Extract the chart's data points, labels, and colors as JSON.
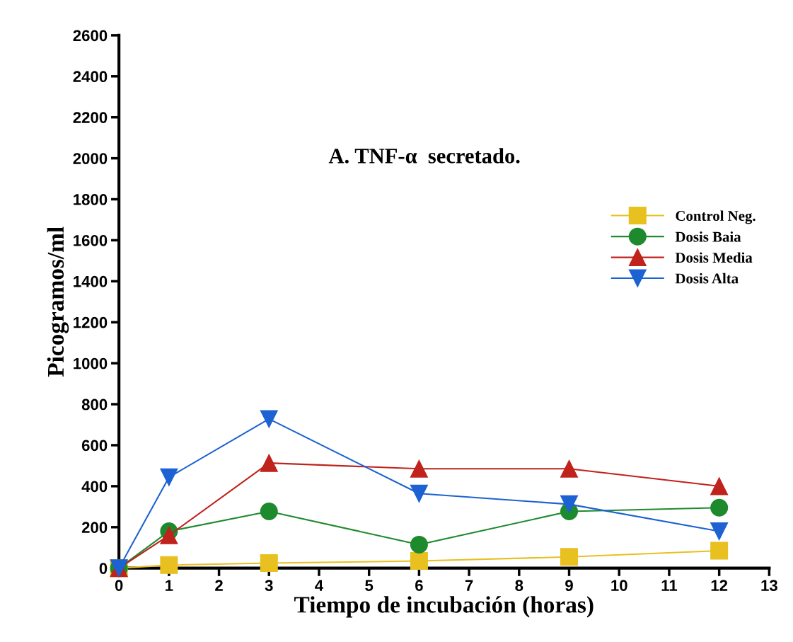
{
  "chart_data": {
    "type": "line",
    "title": "A. TNF-α  secretado.",
    "xlabel": "Tiempo de incubación (horas)",
    "ylabel": "Picogramos/ml",
    "x": [
      0,
      1,
      3,
      6,
      9,
      12
    ],
    "series": [
      {
        "name": "Control Neg.",
        "color": "#e8c020",
        "marker": "square",
        "values": [
          0,
          15,
          25,
          35,
          55,
          85
        ]
      },
      {
        "name": "Dosis Baia",
        "color": "#1e8a2e",
        "marker": "circle",
        "values": [
          0,
          180,
          277,
          115,
          277,
          295
        ]
      },
      {
        "name": "Dosis Media",
        "color": "#c0221c",
        "marker": "triangle",
        "values": [
          0,
          160,
          513,
          485,
          485,
          400
        ]
      },
      {
        "name": "Dosis Alta",
        "color": "#1c62d2",
        "marker": "triangle_down",
        "values": [
          0,
          444,
          728,
          364,
          312,
          180
        ]
      }
    ],
    "xlim": [
      0,
      13
    ],
    "xticks": [
      0,
      1,
      2,
      3,
      4,
      5,
      6,
      7,
      8,
      9,
      10,
      11,
      12,
      13
    ],
    "ylim": [
      0,
      2600
    ],
    "yticks": [
      0,
      200,
      400,
      600,
      800,
      1000,
      1200,
      1400,
      1600,
      1800,
      2000,
      2200,
      2400,
      2600
    ],
    "grid": false,
    "legend": "center right",
    "line_style": "solid"
  }
}
